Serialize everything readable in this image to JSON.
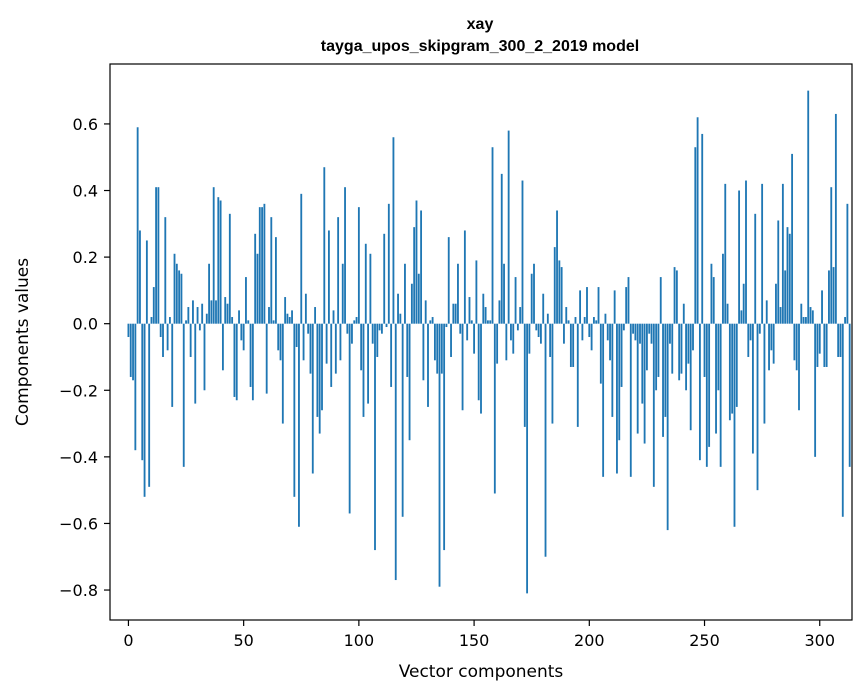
{
  "chart_data": {
    "type": "bar",
    "title": "xay",
    "subtitle": "tayga_upos_skipgram_300_2_2019 model",
    "xlabel": "Vector components",
    "ylabel": "Components values",
    "xlim": [
      -8,
      314
    ],
    "ylim": [
      -0.89,
      0.78
    ],
    "xticks": [
      0,
      50,
      100,
      150,
      200,
      250,
      300
    ],
    "yticks": [
      -0.8,
      -0.6,
      -0.4,
      -0.2,
      0.0,
      0.2,
      0.4,
      0.6
    ],
    "xtick_labels": [
      "0",
      "50",
      "100",
      "150",
      "200",
      "250",
      "300"
    ],
    "ytick_labels": [
      "−0.8",
      "−0.6",
      "−0.4",
      "−0.2",
      "0.0",
      "0.2",
      "0.4",
      "0.6"
    ],
    "bar_color": "#1f77b4",
    "grid": false,
    "values": [
      -0.04,
      -0.16,
      -0.17,
      -0.38,
      0.59,
      0.28,
      -0.41,
      -0.52,
      0.25,
      -0.49,
      0.02,
      0.11,
      0.41,
      0.41,
      -0.04,
      -0.1,
      0.32,
      -0.08,
      0.02,
      -0.25,
      0.21,
      0.18,
      0.16,
      0.15,
      -0.43,
      0.01,
      0.05,
      -0.1,
      0.07,
      -0.24,
      0.05,
      -0.02,
      0.06,
      -0.2,
      0.03,
      0.18,
      0.07,
      0.41,
      0.07,
      0.38,
      0.37,
      -0.14,
      0.08,
      0.06,
      0.33,
      0.02,
      -0.22,
      -0.23,
      0.04,
      -0.05,
      -0.08,
      0.14,
      0.01,
      -0.19,
      -0.23,
      0.27,
      0.21,
      0.35,
      0.35,
      0.36,
      -0.21,
      0.05,
      0.32,
      0.01,
      0.26,
      -0.08,
      -0.11,
      -0.3,
      0.08,
      0.03,
      0.02,
      0.04,
      -0.52,
      -0.07,
      -0.61,
      0.39,
      -0.11,
      0.09,
      -0.03,
      -0.15,
      -0.45,
      0.05,
      -0.28,
      -0.33,
      -0.26,
      0.47,
      -0.12,
      0.28,
      -0.19,
      0.04,
      -0.15,
      0.32,
      -0.11,
      0.18,
      0.41,
      -0.03,
      -0.57,
      -0.06,
      0.01,
      0.02,
      0.35,
      -0.14,
      -0.28,
      0.24,
      -0.24,
      0.21,
      -0.06,
      -0.68,
      -0.1,
      -0.02,
      -0.03,
      0.27,
      -0.01,
      0.36,
      -0.19,
      0.56,
      -0.77,
      0.09,
      0.03,
      -0.58,
      0.18,
      -0.16,
      -0.35,
      0.12,
      0.29,
      0.37,
      0.15,
      0.34,
      -0.17,
      0.07,
      -0.25,
      0.01,
      0.02,
      -0.11,
      -0.15,
      -0.79,
      -0.15,
      -0.68,
      -0.01,
      0.26,
      -0.1,
      0.06,
      0.06,
      0.18,
      -0.03,
      -0.26,
      0.28,
      -0.05,
      0.08,
      0.01,
      -0.09,
      0.19,
      -0.23,
      -0.27,
      0.09,
      0.05,
      0.01,
      0.01,
      0.53,
      -0.51,
      -0.12,
      0.07,
      0.45,
      0.18,
      -0.11,
      0.58,
      -0.05,
      -0.09,
      0.14,
      -0.02,
      0.05,
      0.43,
      -0.31,
      -0.81,
      -0.09,
      0.15,
      0.18,
      -0.02,
      -0.04,
      -0.06,
      0.09,
      -0.7,
      0.03,
      -0.1,
      -0.3,
      0.23,
      0.34,
      0.19,
      0.17,
      -0.06,
      0.05,
      0.01,
      -0.13,
      -0.13,
      0.02,
      -0.31,
      0.1,
      -0.05,
      0.02,
      0.11,
      -0.04,
      -0.08,
      0.02,
      0.01,
      0.11,
      -0.18,
      -0.46,
      0.03,
      -0.05,
      -0.11,
      -0.28,
      0.1,
      -0.45,
      -0.35,
      -0.19,
      -0.02,
      0.11,
      0.14,
      -0.46,
      -0.03,
      -0.05,
      -0.33,
      -0.06,
      -0.24,
      -0.36,
      -0.14,
      -0.03,
      -0.06,
      -0.49,
      -0.2,
      -0.16,
      0.14,
      -0.34,
      -0.28,
      -0.62,
      -0.06,
      -0.15,
      0.17,
      0.16,
      -0.17,
      -0.15,
      0.06,
      -0.2,
      -0.12,
      -0.32,
      -0.08,
      0.53,
      0.62,
      -0.41,
      0.57,
      -0.16,
      -0.43,
      -0.37,
      0.18,
      0.14,
      -0.33,
      -0.2,
      -0.43,
      0.21,
      0.42,
      0.06,
      -0.29,
      -0.27,
      -0.61,
      -0.25,
      0.4,
      0.04,
      0.12,
      0.43,
      -0.1,
      -0.05,
      -0.39,
      0.33,
      -0.5,
      -0.03,
      0.42,
      -0.3,
      0.07,
      -0.14,
      -0.08,
      -0.12,
      0.12,
      0.31,
      0.05,
      0.42,
      0.16,
      0.29,
      0.27,
      0.51,
      -0.11,
      -0.14,
      -0.26,
      0.06,
      0.02,
      0.02,
      0.7,
      0.05,
      0.04,
      -0.4,
      -0.13,
      -0.09,
      0.1,
      -0.13,
      -0.13,
      0.16,
      0.41,
      0.17,
      0.63,
      -0.1,
      -0.1,
      -0.58,
      0.02,
      0.36,
      -0.43
    ]
  }
}
